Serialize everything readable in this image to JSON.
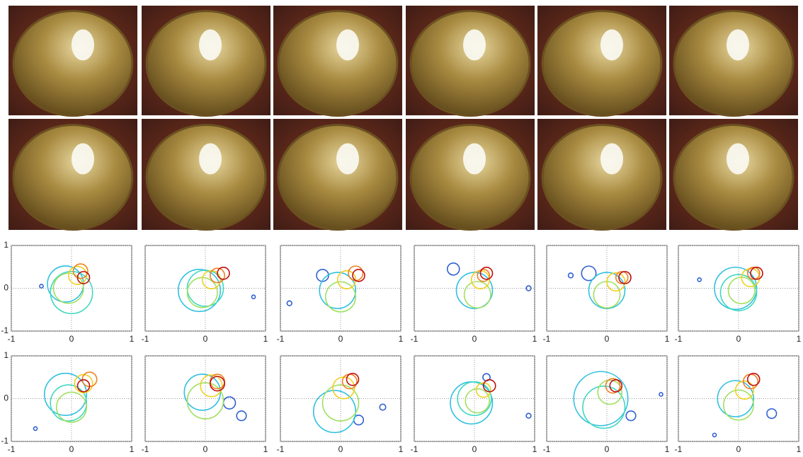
{
  "chart_data": [
    {
      "type": "scatter",
      "xlim": [
        -1,
        1
      ],
      "ylim": [
        -1,
        1
      ],
      "xticks": [
        -1,
        0,
        1
      ],
      "yticks": [
        -1,
        0,
        1
      ],
      "ytick_labels": true,
      "grid": true,
      "x": [
        -0.5,
        -0.1,
        0.0,
        -0.05,
        0.1,
        0.15,
        0.2
      ],
      "y": [
        0.05,
        0.1,
        -0.1,
        0.0,
        0.3,
        0.4,
        0.25
      ],
      "size": [
        0.03,
        0.3,
        0.35,
        0.25,
        0.15,
        0.12,
        0.1
      ],
      "colors": [
        "#3060d0",
        "#30c0e0",
        "#40d8c0",
        "#a0e060",
        "#f0d020",
        "#f08020",
        "#c01010"
      ]
    },
    {
      "type": "scatter",
      "xlim": [
        -1,
        1
      ],
      "ylim": [
        -1,
        1
      ],
      "xticks": [
        -1,
        0,
        1
      ],
      "yticks": [
        -1,
        0,
        1
      ],
      "ytick_labels": false,
      "grid": true,
      "x": [
        0.8,
        -0.1,
        0.0,
        -0.05,
        0.1,
        0.2,
        0.3
      ],
      "y": [
        -0.2,
        -0.05,
        0.0,
        -0.1,
        0.2,
        0.3,
        0.35
      ],
      "size": [
        0.03,
        0.35,
        0.3,
        0.25,
        0.15,
        0.12,
        0.1
      ],
      "colors": [
        "#3060d0",
        "#30c0e0",
        "#40d8c0",
        "#a0e060",
        "#f0d020",
        "#f08020",
        "#c01010"
      ]
    },
    {
      "type": "scatter",
      "xlim": [
        -1,
        1
      ],
      "ylim": [
        -1,
        1
      ],
      "xticks": [
        -1,
        0,
        1
      ],
      "yticks": [
        -1,
        0,
        1
      ],
      "ytick_labels": false,
      "grid": true,
      "x": [
        -0.85,
        -0.3,
        -0.05,
        0.0,
        0.1,
        0.25,
        0.3
      ],
      "y": [
        -0.35,
        0.3,
        -0.05,
        -0.2,
        0.2,
        0.35,
        0.3
      ],
      "size": [
        0.04,
        0.1,
        0.3,
        0.25,
        0.15,
        0.12,
        0.1
      ],
      "colors": [
        "#3060d0",
        "#3060d0",
        "#30c0e0",
        "#a0e060",
        "#f0d020",
        "#f08020",
        "#c01010"
      ]
    },
    {
      "type": "scatter",
      "xlim": [
        -1,
        1
      ],
      "ylim": [
        -1,
        1
      ],
      "xticks": [
        -1,
        0,
        1
      ],
      "yticks": [
        -1,
        0,
        1
      ],
      "ytick_labels": false,
      "grid": true,
      "x": [
        0.9,
        -0.35,
        0.0,
        0.05,
        0.1,
        0.15,
        0.2
      ],
      "y": [
        0.0,
        0.45,
        -0.05,
        -0.15,
        0.2,
        0.3,
        0.35
      ],
      "size": [
        0.04,
        0.1,
        0.3,
        0.22,
        0.15,
        0.1,
        0.1
      ],
      "colors": [
        "#3060d0",
        "#3060d0",
        "#30c0e0",
        "#a0e060",
        "#f0d020",
        "#f08020",
        "#c01010"
      ]
    },
    {
      "type": "scatter",
      "xlim": [
        -1,
        1
      ],
      "ylim": [
        -1,
        1
      ],
      "xticks": [
        -1,
        0,
        1
      ],
      "yticks": [
        -1,
        0,
        1
      ],
      "ytick_labels": false,
      "grid": true,
      "x": [
        -0.6,
        -0.3,
        0.0,
        0.0,
        0.15,
        0.25,
        0.3
      ],
      "y": [
        0.3,
        0.35,
        -0.05,
        -0.15,
        0.15,
        0.25,
        0.25
      ],
      "size": [
        0.04,
        0.12,
        0.3,
        0.22,
        0.15,
        0.1,
        0.1
      ],
      "colors": [
        "#3060d0",
        "#3060d0",
        "#30c0e0",
        "#a0e060",
        "#f0d020",
        "#f08020",
        "#c01010"
      ]
    },
    {
      "type": "scatter",
      "xlim": [
        -1,
        1
      ],
      "ylim": [
        -1,
        1
      ],
      "xticks": [
        -1,
        0,
        1
      ],
      "yticks": [
        -1,
        0,
        1
      ],
      "ytick_labels": false,
      "grid": true,
      "x": [
        -0.65,
        -0.05,
        0.0,
        0.05,
        0.2,
        0.25,
        0.3
      ],
      "y": [
        0.2,
        0.0,
        -0.1,
        -0.05,
        0.25,
        0.35,
        0.35
      ],
      "size": [
        0.03,
        0.35,
        0.3,
        0.22,
        0.15,
        0.1,
        0.1
      ],
      "colors": [
        "#3060d0",
        "#30c0e0",
        "#40d8c0",
        "#a0e060",
        "#f0d020",
        "#f08020",
        "#c01010"
      ]
    },
    {
      "type": "scatter",
      "xlim": [
        -1,
        1
      ],
      "ylim": [
        -1,
        1
      ],
      "xticks": [
        -1,
        0,
        1
      ],
      "yticks": [
        -1,
        0,
        1
      ],
      "ytick_labels": true,
      "grid": true,
      "x": [
        -0.6,
        -0.1,
        -0.05,
        0.0,
        0.2,
        0.3,
        0.2
      ],
      "y": [
        -0.7,
        0.1,
        -0.1,
        -0.2,
        0.35,
        0.45,
        0.3
      ],
      "size": [
        0.03,
        0.35,
        0.3,
        0.25,
        0.15,
        0.12,
        0.1
      ],
      "colors": [
        "#3060d0",
        "#30c0e0",
        "#40d8c0",
        "#a0e060",
        "#f0d020",
        "#f08020",
        "#c01010"
      ]
    },
    {
      "type": "scatter",
      "xlim": [
        -1,
        1
      ],
      "ylim": [
        -1,
        1
      ],
      "xticks": [
        -1,
        0,
        1
      ],
      "yticks": [
        -1,
        0,
        1
      ],
      "ytick_labels": false,
      "grid": true,
      "x": [
        0.6,
        0.4,
        -0.05,
        0.0,
        0.1,
        0.2,
        0.2
      ],
      "y": [
        -0.4,
        -0.1,
        0.15,
        -0.05,
        0.3,
        0.4,
        0.35
      ],
      "size": [
        0.08,
        0.1,
        0.3,
        0.3,
        0.18,
        0.12,
        0.12
      ],
      "colors": [
        "#3060d0",
        "#3060d0",
        "#30c0e0",
        "#a0e060",
        "#f0d020",
        "#f08020",
        "#c01010"
      ]
    },
    {
      "type": "scatter",
      "xlim": [
        -1,
        1
      ],
      "ylim": [
        -1,
        1
      ],
      "xticks": [
        -1,
        0,
        1
      ],
      "yticks": [
        -1,
        0,
        1
      ],
      "ytick_labels": false,
      "grid": true,
      "x": [
        0.7,
        0.3,
        -0.1,
        0.0,
        0.05,
        0.15,
        0.2
      ],
      "y": [
        -0.2,
        -0.5,
        -0.3,
        -0.1,
        0.25,
        0.4,
        0.45
      ],
      "size": [
        0.05,
        0.08,
        0.35,
        0.3,
        0.18,
        0.12,
        0.1
      ],
      "colors": [
        "#3060d0",
        "#3060d0",
        "#30c0e0",
        "#a0e060",
        "#f0d020",
        "#f08020",
        "#c01010"
      ]
    },
    {
      "type": "scatter",
      "xlim": [
        -1,
        1
      ],
      "ylim": [
        -1,
        1
      ],
      "xticks": [
        -1,
        0,
        1
      ],
      "yticks": [
        -1,
        0,
        1
      ],
      "ytick_labels": false,
      "grid": true,
      "x": [
        0.9,
        -0.05,
        0.0,
        0.05,
        0.15,
        0.2,
        0.25
      ],
      "y": [
        -0.4,
        -0.1,
        0.0,
        -0.05,
        0.2,
        0.5,
        0.3
      ],
      "size": [
        0.04,
        0.35,
        0.28,
        0.2,
        0.12,
        0.06,
        0.1
      ],
      "colors": [
        "#3060d0",
        "#30c0e0",
        "#40d8c0",
        "#a0e060",
        "#f0d020",
        "#3060d0",
        "#c01010"
      ]
    },
    {
      "type": "scatter",
      "xlim": [
        -1,
        1
      ],
      "ylim": [
        -1,
        1
      ],
      "xticks": [
        -1,
        0,
        1
      ],
      "yticks": [
        -1,
        0,
        1
      ],
      "ytick_labels": false,
      "grid": true,
      "x": [
        0.9,
        0.4,
        -0.1,
        -0.05,
        0.05,
        0.1,
        0.15
      ],
      "y": [
        0.1,
        -0.4,
        0.0,
        -0.2,
        0.15,
        0.3,
        0.3
      ],
      "size": [
        0.03,
        0.08,
        0.45,
        0.35,
        0.2,
        0.12,
        0.1
      ],
      "colors": [
        "#3060d0",
        "#3060d0",
        "#30c0e0",
        "#40d8c0",
        "#a0e060",
        "#f08020",
        "#c01010"
      ]
    },
    {
      "type": "scatter",
      "xlim": [
        -1,
        1
      ],
      "ylim": [
        -1,
        1
      ],
      "xticks": [
        -1,
        0,
        1
      ],
      "yticks": [
        -1,
        0,
        1
      ],
      "ytick_labels": false,
      "grid": true,
      "x": [
        -0.4,
        0.55,
        -0.05,
        0.0,
        0.1,
        0.2,
        0.25
      ],
      "y": [
        -0.85,
        -0.35,
        0.0,
        -0.15,
        0.2,
        0.4,
        0.45
      ],
      "size": [
        0.03,
        0.08,
        0.3,
        0.25,
        0.15,
        0.12,
        0.1
      ],
      "colors": [
        "#3060d0",
        "#3060d0",
        "#30c0e0",
        "#a0e060",
        "#f0d020",
        "#f08020",
        "#c01010"
      ]
    }
  ]
}
